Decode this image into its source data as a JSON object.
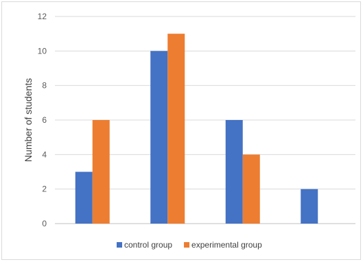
{
  "chart_data": {
    "type": "bar",
    "categories": [
      "",
      "",
      "",
      ""
    ],
    "series": [
      {
        "name": "control group",
        "values": [
          3,
          10,
          6,
          2
        ],
        "color": "#4472C4"
      },
      {
        "name": "experimental group",
        "values": [
          6,
          11,
          4,
          null
        ],
        "color": "#ED7D31"
      }
    ],
    "title": "",
    "xlabel": "",
    "ylabel": "Number of students",
    "ylim": [
      0,
      12
    ],
    "yticks": [
      "0",
      "2",
      "4",
      "6",
      "8",
      "10",
      "12"
    ],
    "grid": true,
    "legend_position": "bottom"
  }
}
